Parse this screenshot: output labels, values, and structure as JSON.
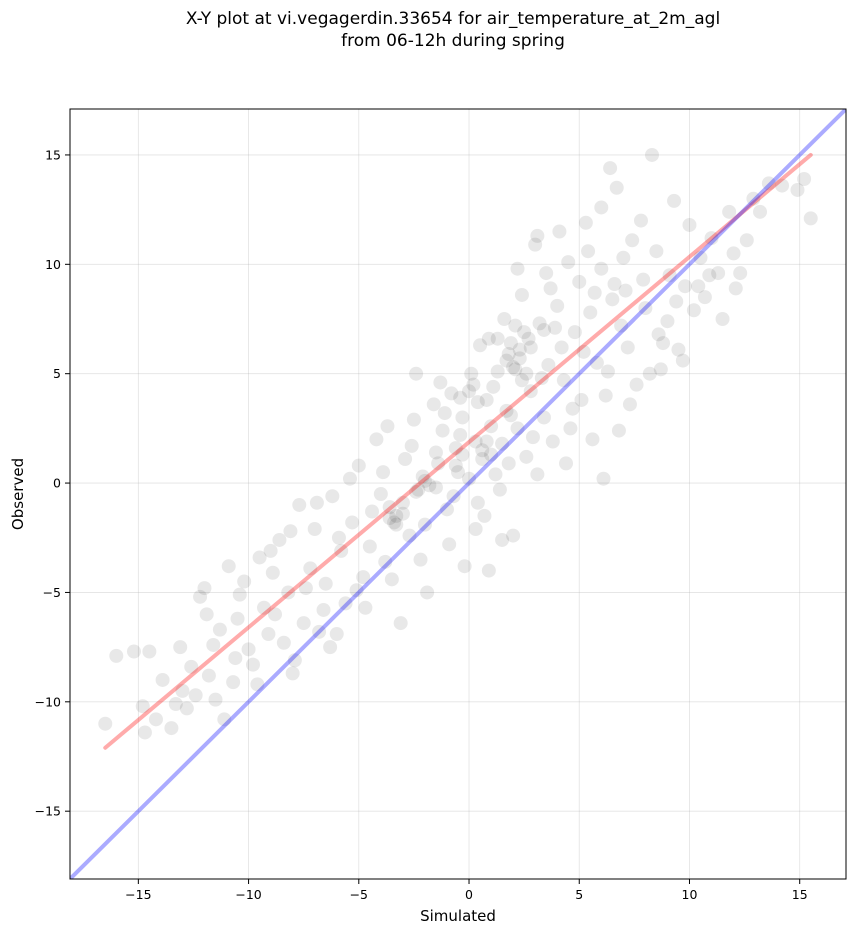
{
  "chart_data": {
    "type": "scatter",
    "title": "X-Y plot at vi.vegagerdin.33654 for air_temperature_at_2m_agl",
    "subtitle": "from 06-12h during spring",
    "xlabel": "Simulated",
    "ylabel": "Observed",
    "xlim": [
      -18.1,
      17.1
    ],
    "ylim": [
      -18.1,
      17.1
    ],
    "xticks": [
      -15,
      -10,
      -5,
      0,
      5,
      10,
      15
    ],
    "yticks": [
      -15,
      -10,
      -5,
      0,
      5,
      10,
      15
    ],
    "xtick_labels": [
      "−15",
      "−10",
      "−5",
      "0",
      "5",
      "10",
      "15"
    ],
    "ytick_labels": [
      "−15",
      "−10",
      "−5",
      "0",
      "5",
      "10",
      "15"
    ],
    "grid": true,
    "colors": {
      "points": "#000000",
      "regression_line": "#ff0000",
      "identity_line": "#0000ff",
      "grid": "#b0b0b0"
    },
    "lines": [
      {
        "kind": "regression",
        "x": [
          -16.5,
          15.5
        ],
        "y": [
          -12.1,
          15.0
        ]
      },
      {
        "kind": "identity",
        "x": [
          -18.1,
          17.1
        ],
        "y": [
          -18.1,
          17.1
        ]
      }
    ],
    "points": [
      [
        -16.5,
        -11.0
      ],
      [
        -16.0,
        -7.9
      ],
      [
        -15.2,
        -7.7
      ],
      [
        -14.8,
        -10.2
      ],
      [
        -14.7,
        -11.4
      ],
      [
        -14.5,
        -7.7
      ],
      [
        -14.2,
        -10.8
      ],
      [
        -13.5,
        -11.2
      ],
      [
        -13.3,
        -10.1
      ],
      [
        -13.1,
        -7.5
      ],
      [
        -13.0,
        -9.5
      ],
      [
        -12.6,
        -8.4
      ],
      [
        -12.4,
        -9.7
      ],
      [
        -12.2,
        -5.2
      ],
      [
        -12.0,
        -4.8
      ],
      [
        -11.8,
        -8.8
      ],
      [
        -11.6,
        -7.4
      ],
      [
        -11.3,
        -6.7
      ],
      [
        -11.1,
        -10.8
      ],
      [
        -10.9,
        -3.8
      ],
      [
        -10.7,
        -9.1
      ],
      [
        -10.5,
        -6.2
      ],
      [
        -10.2,
        -4.5
      ],
      [
        -10.0,
        -7.6
      ],
      [
        -9.8,
        -8.3
      ],
      [
        -9.5,
        -3.4
      ],
      [
        -9.3,
        -5.7
      ],
      [
        -9.1,
        -6.9
      ],
      [
        -8.9,
        -4.1
      ],
      [
        -8.6,
        -2.6
      ],
      [
        -8.4,
        -7.3
      ],
      [
        -8.2,
        -5.0
      ],
      [
        -8.0,
        -8.7
      ],
      [
        -7.7,
        -1.0
      ],
      [
        -7.5,
        -6.4
      ],
      [
        -7.2,
        -3.9
      ],
      [
        -7.0,
        -2.1
      ],
      [
        -6.8,
        -6.8
      ],
      [
        -6.5,
        -4.6
      ],
      [
        -6.2,
        -0.6
      ],
      [
        -6.0,
        -6.9
      ],
      [
        -5.8,
        -3.1
      ],
      [
        -5.6,
        -5.5
      ],
      [
        -5.3,
        -1.8
      ],
      [
        -5.0,
        0.8
      ],
      [
        -4.8,
        -4.3
      ],
      [
        -4.5,
        -2.9
      ],
      [
        -4.2,
        2.0
      ],
      [
        -4.0,
        -0.5
      ],
      [
        -3.8,
        -3.6
      ],
      [
        -3.6,
        -1.1
      ],
      [
        -3.4,
        -1.8
      ],
      [
        -3.3,
        -1.5
      ],
      [
        -3.1,
        -6.4
      ],
      [
        -2.9,
        1.1
      ],
      [
        -2.7,
        -2.4
      ],
      [
        -2.5,
        2.9
      ],
      [
        -2.3,
        -0.3
      ],
      [
        -2.1,
        0.3
      ],
      [
        -1.9,
        -5.0
      ],
      [
        -1.8,
        -0.1
      ],
      [
        -1.6,
        3.6
      ],
      [
        -1.4,
        0.9
      ],
      [
        -1.2,
        2.4
      ],
      [
        -1.0,
        -1.2
      ],
      [
        -0.8,
        4.1
      ],
      [
        -0.6,
        1.6
      ],
      [
        -0.5,
        0.5
      ],
      [
        -0.3,
        3.0
      ],
      [
        -0.2,
        -3.8
      ],
      [
        0.0,
        0.2
      ],
      [
        0.2,
        4.5
      ],
      [
        0.3,
        1.9
      ],
      [
        0.5,
        6.3
      ],
      [
        0.6,
        1.1
      ],
      [
        0.7,
        -1.5
      ],
      [
        0.8,
        3.8
      ],
      [
        0.9,
        -4.0
      ],
      [
        1.0,
        2.6
      ],
      [
        1.2,
        0.4
      ],
      [
        1.3,
        5.1
      ],
      [
        1.5,
        1.8
      ],
      [
        1.6,
        7.5
      ],
      [
        1.7,
        3.3
      ],
      [
        1.8,
        5.9
      ],
      [
        2.0,
        -2.4
      ],
      [
        2.1,
        5.2
      ],
      [
        2.2,
        2.5
      ],
      [
        2.3,
        5.7
      ],
      [
        2.4,
        8.6
      ],
      [
        2.6,
        1.2
      ],
      [
        2.7,
        6.6
      ],
      [
        2.8,
        4.2
      ],
      [
        3.0,
        10.9
      ],
      [
        3.1,
        0.4
      ],
      [
        3.2,
        7.3
      ],
      [
        3.4,
        3.0
      ],
      [
        3.5,
        9.6
      ],
      [
        3.6,
        5.4
      ],
      [
        3.8,
        1.9
      ],
      [
        4.0,
        8.1
      ],
      [
        4.1,
        11.5
      ],
      [
        4.3,
        4.7
      ],
      [
        4.5,
        10.1
      ],
      [
        4.6,
        2.5
      ],
      [
        4.8,
        6.9
      ],
      [
        5.0,
        9.2
      ],
      [
        5.1,
        3.8
      ],
      [
        5.3,
        11.9
      ],
      [
        5.5,
        7.8
      ],
      [
        5.6,
        2.0
      ],
      [
        5.8,
        5.5
      ],
      [
        6.0,
        9.8
      ],
      [
        6.1,
        0.2
      ],
      [
        6.2,
        4.0
      ],
      [
        6.4,
        14.4
      ],
      [
        6.5,
        8.4
      ],
      [
        6.7,
        13.5
      ],
      [
        6.8,
        2.4
      ],
      [
        7.0,
        10.3
      ],
      [
        7.2,
        6.2
      ],
      [
        7.4,
        11.1
      ],
      [
        7.6,
        4.5
      ],
      [
        7.8,
        12.0
      ],
      [
        8.0,
        8.0
      ],
      [
        8.3,
        15.0
      ],
      [
        8.5,
        10.6
      ],
      [
        8.7,
        5.2
      ],
      [
        9.0,
        7.4
      ],
      [
        9.3,
        12.9
      ],
      [
        9.5,
        6.1
      ],
      [
        9.8,
        9.0
      ],
      [
        10.0,
        11.8
      ],
      [
        10.2,
        7.9
      ],
      [
        10.5,
        10.3
      ],
      [
        10.7,
        8.5
      ],
      [
        11.0,
        11.2
      ],
      [
        11.3,
        9.6
      ],
      [
        11.5,
        7.5
      ],
      [
        11.8,
        12.4
      ],
      [
        12.0,
        10.5
      ],
      [
        12.3,
        9.6
      ],
      [
        12.6,
        11.1
      ],
      [
        12.9,
        13.0
      ],
      [
        13.2,
        12.4
      ],
      [
        13.6,
        13.7
      ],
      [
        14.2,
        13.6
      ],
      [
        14.9,
        13.4
      ],
      [
        15.2,
        13.9
      ],
      [
        15.5,
        12.1
      ],
      [
        -9.6,
        -9.2
      ],
      [
        -8.8,
        -6.0
      ],
      [
        -7.9,
        -8.1
      ],
      [
        -6.6,
        -5.8
      ],
      [
        -5.9,
        -2.5
      ],
      [
        -5.1,
        -4.9
      ],
      [
        -4.4,
        -1.3
      ],
      [
        -3.9,
        0.5
      ],
      [
        -3.0,
        -0.9
      ],
      [
        -2.6,
        1.7
      ],
      [
        -2.0,
        -1.9
      ],
      [
        -1.5,
        1.4
      ],
      [
        -1.1,
        3.2
      ],
      [
        -0.7,
        -0.6
      ],
      [
        -0.4,
        2.2
      ],
      [
        0.1,
        5.0
      ],
      [
        0.4,
        -0.9
      ],
      [
        1.1,
        4.4
      ],
      [
        1.4,
        -0.3
      ],
      [
        1.9,
        3.1
      ],
      [
        2.5,
        6.9
      ],
      [
        2.9,
        2.1
      ],
      [
        3.3,
        4.8
      ],
      [
        3.7,
        8.9
      ],
      [
        4.2,
        6.2
      ],
      [
        4.7,
        3.4
      ],
      [
        5.2,
        6.0
      ],
      [
        5.7,
        8.7
      ],
      [
        6.3,
        5.1
      ],
      [
        6.9,
        7.2
      ],
      [
        7.3,
        3.6
      ],
      [
        7.9,
        9.3
      ],
      [
        8.6,
        6.8
      ],
      [
        9.1,
        9.5
      ],
      [
        9.7,
        5.6
      ],
      [
        10.4,
        9.0
      ],
      [
        -12.8,
        -10.3
      ],
      [
        -11.9,
        -6.0
      ],
      [
        -10.6,
        -8.0
      ],
      [
        -9.0,
        -3.1
      ],
      [
        -7.4,
        -4.8
      ],
      [
        -6.3,
        -7.5
      ],
      [
        -4.7,
        -5.7
      ],
      [
        -3.5,
        -4.4
      ],
      [
        -2.2,
        -3.5
      ],
      [
        -0.9,
        -2.8
      ],
      [
        0.3,
        -2.1
      ],
      [
        1.8,
        0.9
      ],
      [
        2.2,
        9.8
      ],
      [
        3.9,
        7.1
      ],
      [
        5.4,
        10.6
      ],
      [
        6.6,
        9.1
      ],
      [
        8.2,
        5.0
      ],
      [
        9.4,
        8.3
      ],
      [
        -13.9,
        -9.0
      ],
      [
        -8.1,
        -2.2
      ],
      [
        -5.4,
        0.2
      ],
      [
        -1.3,
        4.6
      ],
      [
        0.9,
        6.6
      ],
      [
        3.1,
        11.3
      ],
      [
        4.4,
        0.9
      ],
      [
        7.1,
        8.8
      ],
      [
        10.9,
        9.5
      ],
      [
        12.1,
        8.9
      ],
      [
        -2.4,
        5.0
      ],
      [
        1.5,
        -2.6
      ],
      [
        -3.7,
        2.6
      ],
      [
        -6.9,
        -0.9
      ],
      [
        -10.4,
        -5.1
      ],
      [
        -11.5,
        -9.9
      ],
      [
        6.0,
        12.6
      ],
      [
        8.8,
        6.4
      ],
      [
        2.0,
        5.3
      ],
      [
        2.3,
        6.1
      ],
      [
        1.7,
        5.6
      ],
      [
        2.6,
        5.0
      ],
      [
        1.9,
        6.4
      ],
      [
        2.4,
        4.7
      ],
      [
        -3.3,
        -1.9
      ],
      [
        -3.0,
        -1.4
      ],
      [
        -3.6,
        -1.6
      ],
      [
        -2.0,
        0.1
      ],
      [
        -1.5,
        -0.2
      ],
      [
        -2.4,
        -0.4
      ],
      [
        -0.6,
        0.8
      ],
      [
        -0.3,
        1.3
      ],
      [
        0.6,
        1.5
      ],
      [
        1.0,
        1.3
      ],
      [
        0.8,
        1.9
      ],
      [
        0.0,
        4.2
      ],
      [
        0.4,
        3.7
      ],
      [
        -0.4,
        3.9
      ],
      [
        1.3,
        6.6
      ],
      [
        2.8,
        6.2
      ],
      [
        3.4,
        7.0
      ],
      [
        2.1,
        7.2
      ]
    ]
  }
}
